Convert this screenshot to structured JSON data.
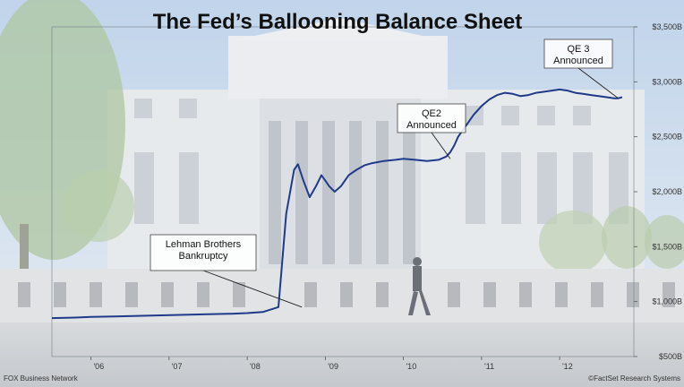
{
  "chart_data": {
    "type": "line",
    "title": "The Fed’s Ballooning Balance Sheet",
    "xlabel": "",
    "ylabel": "",
    "x_tick_labels": [
      "'06",
      "'07",
      "'08",
      "'09",
      "'10",
      "'11",
      "'12"
    ],
    "x_tick_values": [
      2006,
      2007,
      2008,
      2009,
      2010,
      2011,
      2012
    ],
    "y_tick_labels": [
      "$500B",
      "$1,000B",
      "$1,500B",
      "$2,000B",
      "$2,500B",
      "$3,000B",
      "$3,500B"
    ],
    "y_tick_values": [
      500,
      1000,
      1500,
      2000,
      2500,
      3000,
      3500
    ],
    "xlim": [
      2005.5,
      2012.95
    ],
    "ylim": [
      500,
      3500
    ],
    "series": [
      {
        "color": "#1f3a8a",
        "x": [
          2005.5,
          2005.8,
          2006.0,
          2006.3,
          2006.6,
          2006.9,
          2007.2,
          2007.5,
          2007.8,
          2008.0,
          2008.2,
          2008.4,
          2008.5,
          2008.6,
          2008.65,
          2008.72,
          2008.8,
          2008.88,
          2008.95,
          2009.0,
          2009.05,
          2009.12,
          2009.2,
          2009.3,
          2009.4,
          2009.5,
          2009.6,
          2009.75,
          2009.9,
          2010.0,
          2010.15,
          2010.3,
          2010.45,
          2010.55,
          2010.6,
          2010.65,
          2010.7,
          2010.8,
          2010.9,
          2011.0,
          2011.1,
          2011.2,
          2011.3,
          2011.4,
          2011.5,
          2011.6,
          2011.7,
          2011.8,
          2011.9,
          2012.0,
          2012.1,
          2012.2,
          2012.3,
          2012.4,
          2012.5,
          2012.6,
          2012.7,
          2012.75,
          2012.8
        ],
        "y": [
          850,
          855,
          860,
          865,
          870,
          875,
          880,
          885,
          890,
          895,
          905,
          950,
          1800,
          2200,
          2250,
          2100,
          1950,
          2050,
          2150,
          2100,
          2050,
          2000,
          2050,
          2150,
          2200,
          2240,
          2260,
          2280,
          2290,
          2300,
          2290,
          2280,
          2290,
          2320,
          2360,
          2420,
          2500,
          2600,
          2700,
          2780,
          2840,
          2880,
          2900,
          2890,
          2870,
          2880,
          2900,
          2910,
          2920,
          2930,
          2920,
          2900,
          2890,
          2880,
          2870,
          2860,
          2850,
          2850,
          2860
        ]
      }
    ],
    "annotations": [
      {
        "lines": [
          "Lehman Brothers",
          "Bankruptcy"
        ],
        "x": 2008.7,
        "y": 950
      },
      {
        "lines": [
          "QE2",
          "Announced"
        ],
        "x": 2010.6,
        "y": 2300
      },
      {
        "lines": [
          "QE 3",
          "Announced"
        ],
        "x": 2012.75,
        "y": 2850
      }
    ],
    "grid": false,
    "legend": "none"
  },
  "footer": {
    "left": "FOX Business Network",
    "right": "©FactSet Research Systems"
  }
}
